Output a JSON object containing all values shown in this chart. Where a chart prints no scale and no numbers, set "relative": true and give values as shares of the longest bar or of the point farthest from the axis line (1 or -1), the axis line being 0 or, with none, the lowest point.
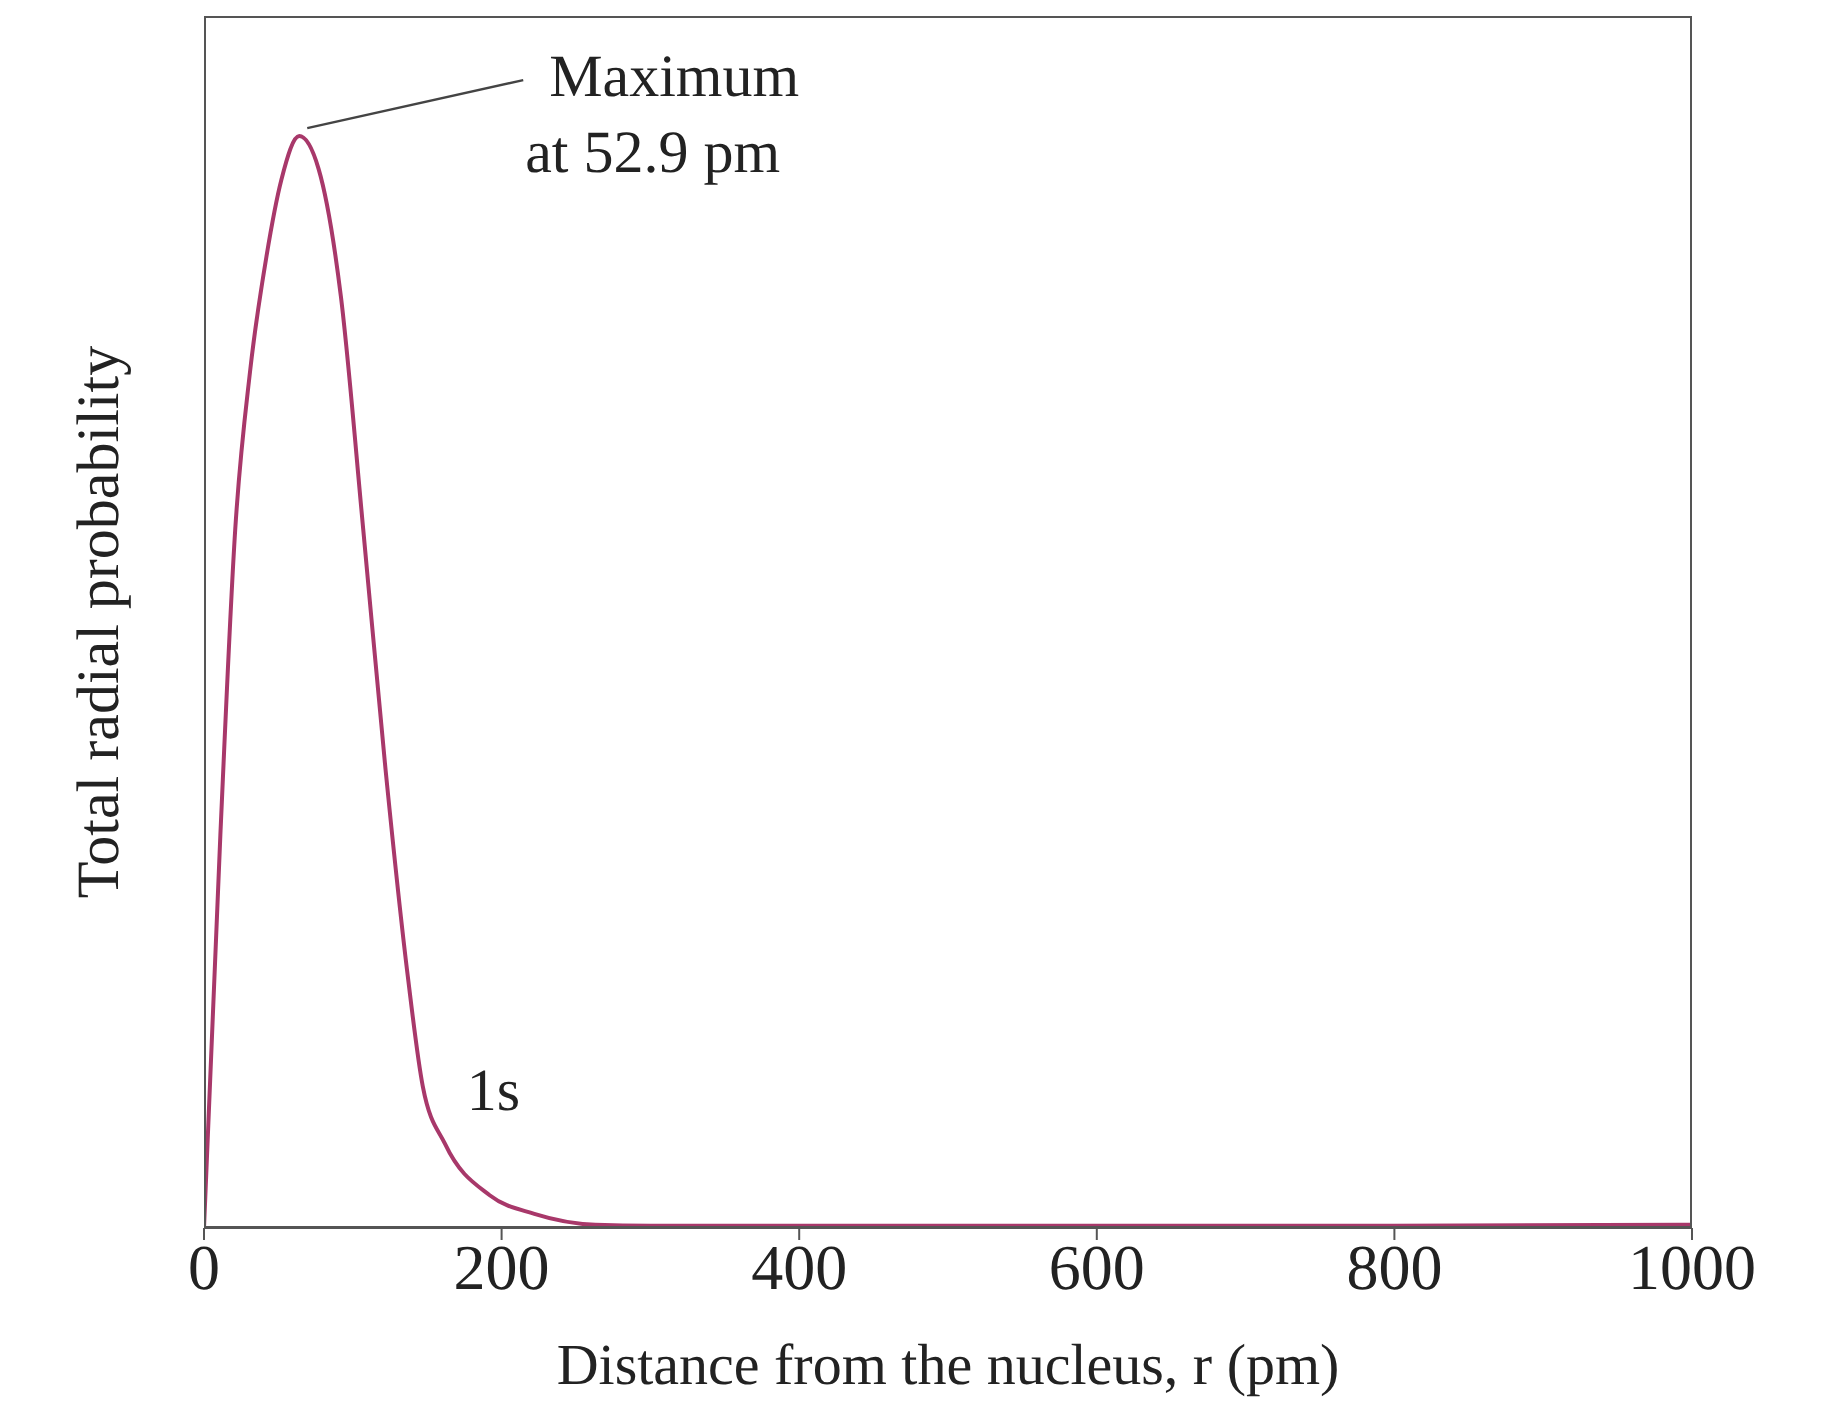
{
  "chart_data": {
    "type": "line",
    "relative": true,
    "xlabel": "Distance from the nucleus, r (pm)",
    "ylabel": "Total radial probability",
    "xlim": [
      0,
      1000
    ],
    "xticks": [
      0,
      200,
      400,
      600,
      800,
      1000
    ],
    "marker": "none",
    "annotations": [
      {
        "text": "Maximum\nat 52.9 pm",
        "x": 64,
        "y": 1
      }
    ],
    "series": [
      {
        "name": "1s",
        "color": "#a8386a",
        "x": [
          0,
          11,
          21,
          31,
          42,
          52,
          64,
          77,
          92,
          107,
          122,
          137,
          147,
          162,
          192,
          222,
          263,
          300,
          400,
          600,
          800,
          1000
        ],
        "values": [
          0,
          0.36,
          0.64,
          0.785,
          0.89,
          0.96,
          1,
          0.97,
          0.853,
          0.64,
          0.42,
          0.23,
          0.13,
          0.077,
          0.03,
          0.013,
          0.003,
          0.002,
          0.002,
          0.002,
          0.002,
          0.003
        ]
      }
    ]
  }
}
